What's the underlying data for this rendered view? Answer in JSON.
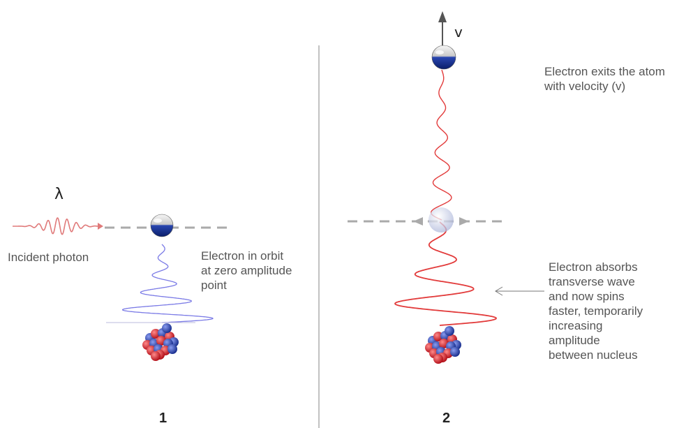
{
  "panel1": {
    "wavelength_symbol": "λ",
    "photon_label": "Incident photon",
    "electron_label": [
      "Electron in orbit",
      "at zero amplitude",
      "point"
    ],
    "number": "1"
  },
  "panel2": {
    "velocity_symbol": "v",
    "exit_label": [
      "Electron exits the atom",
      "with velocity (v)"
    ],
    "absorb_label": [
      "Electron absorbs",
      "transverse wave",
      "and now spins",
      "faster, temporarily",
      "increasing",
      "amplitude",
      "between nucleus"
    ],
    "number": "2"
  },
  "colors": {
    "electron_blue": "#1a3a9a",
    "proton_red": "#d8202a",
    "neutron_blue": "#2a3fa8",
    "wave_red": "#e23a3a",
    "wave_violet": "#7a7ae6",
    "dash_gray": "#aaaaaa"
  }
}
